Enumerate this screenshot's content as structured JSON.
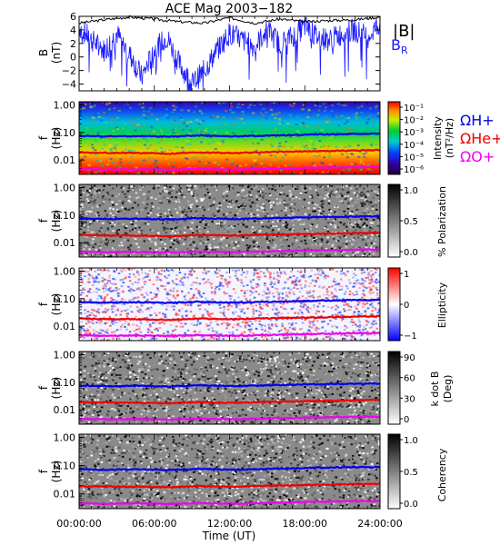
{
  "title": "ACE Mag 2003−182",
  "xlabel": "Time (UT)",
  "xticks": [
    "00:00:00",
    "06:00:00",
    "12:00:00",
    "18:00:00",
    "24:00:00"
  ],
  "colors": {
    "bmag": "#000000",
    "br": "#1a1aff",
    "h_plus": "#0000ee",
    "he_plus": "#ee0000",
    "o_plus": "#ee00ee"
  },
  "chart_data": [
    {
      "type": "line",
      "panel": "b-field",
      "ylabel_top": "B",
      "ylabel_bottom": "(nT)",
      "yticks": [
        "6",
        "4",
        "2",
        "0",
        "−2",
        "−4"
      ],
      "ylim": [
        -5,
        6
      ],
      "xlim_hours": [
        0,
        24
      ],
      "legend": [
        "|B|",
        "B",
        "R"
      ],
      "series": [
        {
          "name": "|B|",
          "x_hours": [
            0,
            2,
            4,
            6,
            8,
            10,
            12,
            14,
            16,
            18,
            20,
            22,
            24
          ],
          "values": [
            5.0,
            5.5,
            5.9,
            5.6,
            5.2,
            5.0,
            5.8,
            5.0,
            5.6,
            5.2,
            5.4,
            5.5,
            5.9
          ]
        },
        {
          "name": "BR",
          "x_hours": [
            0,
            1,
            2,
            3,
            4,
            5,
            6,
            7,
            8,
            9,
            10,
            11,
            12,
            13,
            14,
            15,
            16,
            17,
            18,
            19,
            20,
            21,
            22,
            23,
            24
          ],
          "values": [
            4.5,
            2.5,
            1.0,
            3.5,
            0.5,
            -3.0,
            1.0,
            3.0,
            -1.0,
            -4.0,
            -2.0,
            1.0,
            3.5,
            2.5,
            1.5,
            4.0,
            2.0,
            3.0,
            4.5,
            3.0,
            2.5,
            3.5,
            4.0,
            3.0,
            5.0
          ]
        }
      ]
    },
    {
      "type": "heatmap",
      "panel": "intensity",
      "ylabel_top": "f",
      "ylabel_bottom": "(Hz)",
      "yticks": [
        "1.00",
        "0.10",
        "0.01"
      ],
      "ylim": [
        0.003,
        1.3
      ],
      "colorbar_label_1": "Intensity",
      "colorbar_label_2": "(nT²/Hz)",
      "colorbar_ticks": [
        "10⁻¹",
        "10⁻²",
        "10⁻³",
        "10⁻⁴",
        "10⁻⁵",
        "10⁻⁶"
      ],
      "legend_h": "ΩH+",
      "legend_he": "ΩHe+",
      "legend_o": "ΩO+"
    },
    {
      "type": "heatmap",
      "panel": "polarization",
      "ylabel_top": "f",
      "ylabel_bottom": "(Hz)",
      "yticks": [
        "1.00",
        "0.10",
        "0.01"
      ],
      "colorbar_label": "% Polarization",
      "colorbar_ticks": [
        "1.0",
        "0.5",
        "0.0"
      ]
    },
    {
      "type": "heatmap",
      "panel": "ellipticity",
      "ylabel_top": "f",
      "ylabel_bottom": "(Hz)",
      "yticks": [
        "1.00",
        "0.10",
        "0.01"
      ],
      "colorbar_label": "Ellipticity",
      "colorbar_ticks": [
        "1",
        "0",
        "−1"
      ]
    },
    {
      "type": "heatmap",
      "panel": "kdotb",
      "ylabel_top": "f",
      "ylabel_bottom": "(Hz)",
      "yticks": [
        "1.00",
        "0.10",
        "0.01"
      ],
      "colorbar_label_1": "k dot B",
      "colorbar_label_2": "(Deg)",
      "colorbar_ticks": [
        "90",
        "60",
        "30",
        "0"
      ]
    },
    {
      "type": "heatmap",
      "panel": "coherency",
      "ylabel_top": "f",
      "ylabel_bottom": "(Hz)",
      "yticks": [
        "1.00",
        "0.10",
        "0.01"
      ],
      "colorbar_label": "Coherency",
      "colorbar_ticks": [
        "1.0",
        "0.5",
        "0.0"
      ]
    }
  ],
  "gyro_frequencies_hz": {
    "h_plus": [
      0.075,
      0.072,
      0.074,
      0.07,
      0.078,
      0.072,
      0.075,
      0.08,
      0.085,
      0.088,
      0.09
    ],
    "he_plus": [
      0.019,
      0.018,
      0.018,
      0.017,
      0.019,
      0.018,
      0.019,
      0.02,
      0.021,
      0.022,
      0.023
    ],
    "o_plus": [
      0.0047,
      0.0045,
      0.0046,
      0.0044,
      0.0048,
      0.0045,
      0.0047,
      0.005,
      0.0053,
      0.0055,
      0.0056
    ],
    "x_hours": [
      0,
      2.4,
      4.8,
      7.2,
      9.6,
      12,
      14.4,
      16.8,
      19.2,
      21.6,
      24
    ]
  }
}
